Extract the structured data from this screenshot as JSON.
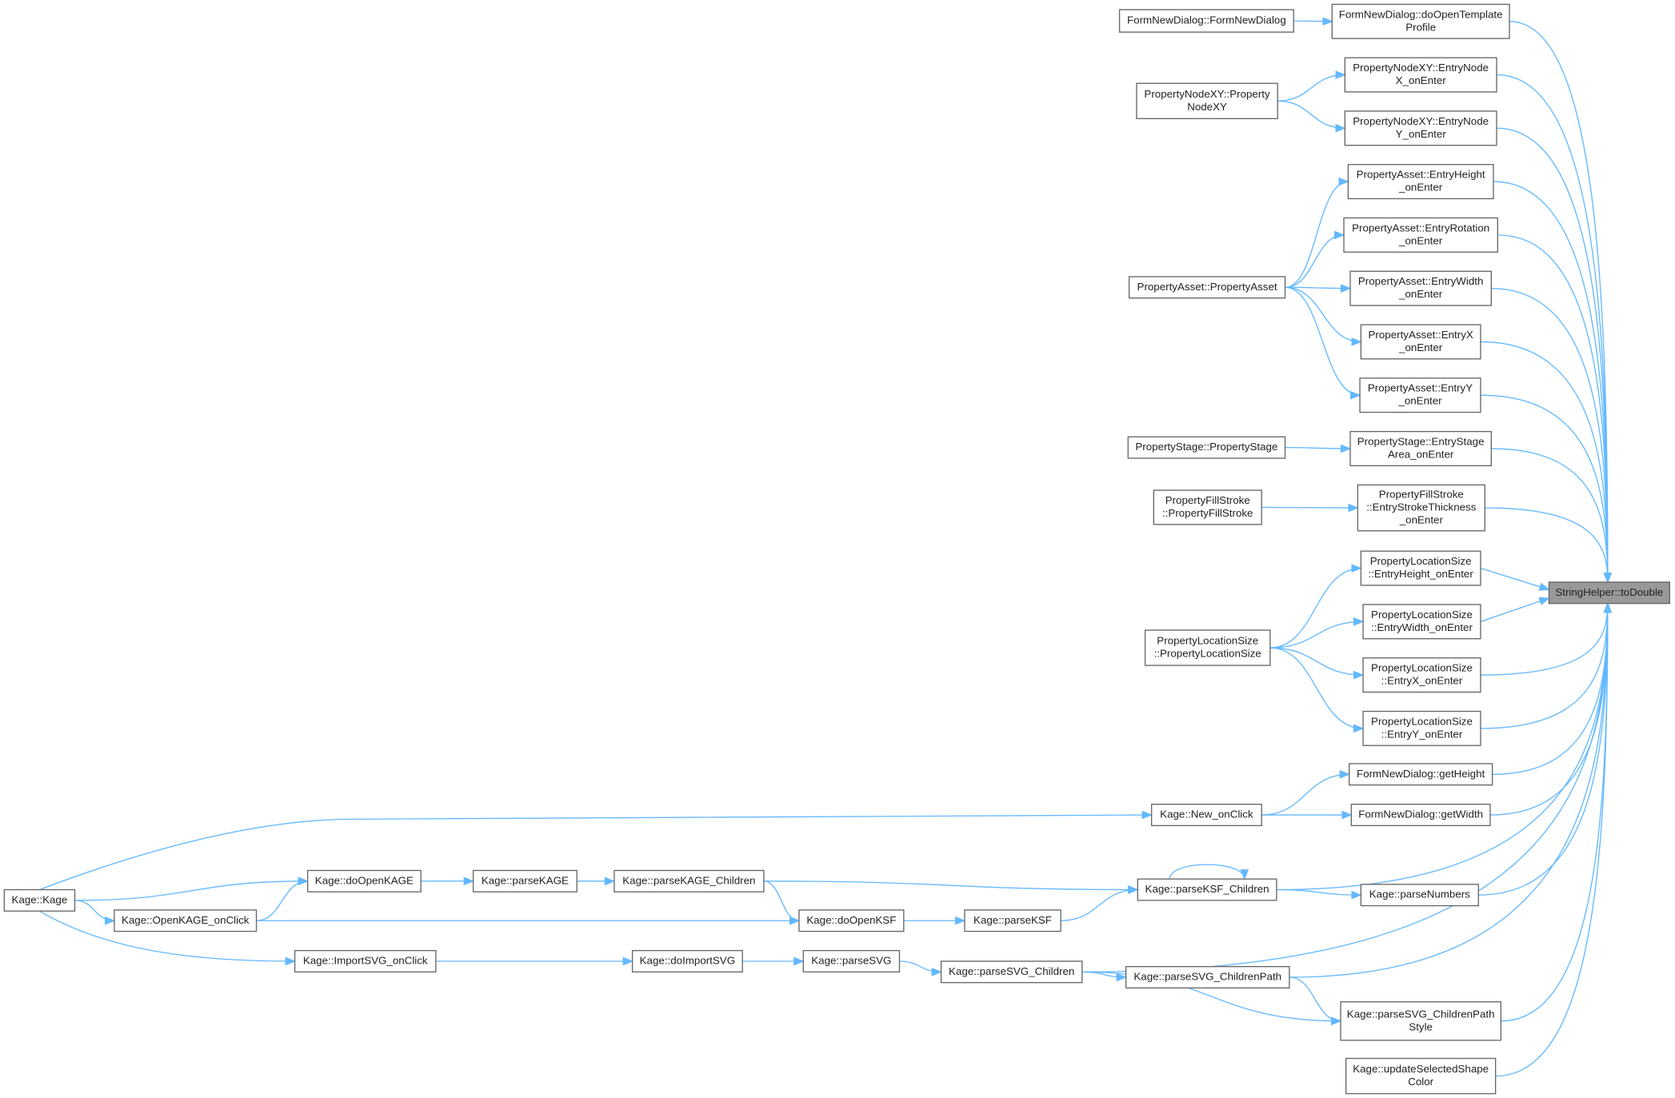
{
  "nodes": [
    {
      "label": [
        "FormNewDialog::FormNewDialog"
      ]
    },
    {
      "label": [
        "FormNewDialog::doOpenTemplate",
        "Profile"
      ]
    },
    {
      "label": [
        "PropertyNodeXY::Property",
        "NodeXY"
      ]
    },
    {
      "label": [
        "PropertyNodeXY::EntryNode",
        "X_onEnter"
      ]
    },
    {
      "label": [
        "PropertyNodeXY::EntryNode",
        "Y_onEnter"
      ]
    },
    {
      "label": [
        "PropertyAsset::EntryHeight",
        "_onEnter"
      ]
    },
    {
      "label": [
        "PropertyAsset::EntryRotation",
        "_onEnter"
      ]
    },
    {
      "label": [
        "PropertyAsset::PropertyAsset"
      ]
    },
    {
      "label": [
        "PropertyAsset::EntryWidth",
        "_onEnter"
      ]
    },
    {
      "label": [
        "PropertyAsset::EntryX",
        "_onEnter"
      ]
    },
    {
      "label": [
        "PropertyAsset::EntryY",
        "_onEnter"
      ]
    },
    {
      "label": [
        "PropertyStage::PropertyStage"
      ]
    },
    {
      "label": [
        "PropertyStage::EntryStage",
        "Area_onEnter"
      ]
    },
    {
      "label": [
        "PropertyFillStroke",
        "::PropertyFillStroke"
      ]
    },
    {
      "label": [
        "PropertyFillStroke",
        "::EntryStrokeThickness",
        "_onEnter"
      ]
    },
    {
      "label": [
        "PropertyLocationSize",
        "::EntryHeight_onEnter"
      ]
    },
    {
      "label": [
        "StringHelper::toDouble"
      ]
    },
    {
      "label": [
        "PropertyLocationSize",
        "::PropertyLocationSize"
      ]
    },
    {
      "label": [
        "PropertyLocationSize",
        "::EntryWidth_onEnter"
      ]
    },
    {
      "label": [
        "PropertyLocationSize",
        "::EntryX_onEnter"
      ]
    },
    {
      "label": [
        "PropertyLocationSize",
        "::EntryY_onEnter"
      ]
    },
    {
      "label": [
        "FormNewDialog::getHeight"
      ]
    },
    {
      "label": [
        "Kage::New_onClick"
      ]
    },
    {
      "label": [
        "FormNewDialog::getWidth"
      ]
    },
    {
      "label": [
        "Kage::Kage"
      ]
    },
    {
      "label": [
        "Kage::doOpenKAGE"
      ]
    },
    {
      "label": [
        "Kage::parseKAGE"
      ]
    },
    {
      "label": [
        "Kage::parseKAGE_Children"
      ]
    },
    {
      "label": [
        "Kage::parseKSF_Children"
      ]
    },
    {
      "label": [
        "Kage::OpenKAGE_onClick"
      ]
    },
    {
      "label": [
        "Kage::doOpenKSF"
      ]
    },
    {
      "label": [
        "Kage::parseKSF"
      ]
    },
    {
      "label": [
        "Kage::parseNumbers"
      ]
    },
    {
      "label": [
        "Kage::ImportSVG_onClick"
      ]
    },
    {
      "label": [
        "Kage::doImportSVG"
      ]
    },
    {
      "label": [
        "Kage::parseSVG"
      ]
    },
    {
      "label": [
        "Kage::parseSVG_Children"
      ]
    },
    {
      "label": [
        "Kage::parseSVG_ChildrenPath"
      ]
    },
    {
      "label": [
        "Kage::parseSVG_ChildrenPath",
        "Style"
      ]
    },
    {
      "label": [
        "Kage::updateSelectedShape",
        "Color"
      ]
    }
  ]
}
